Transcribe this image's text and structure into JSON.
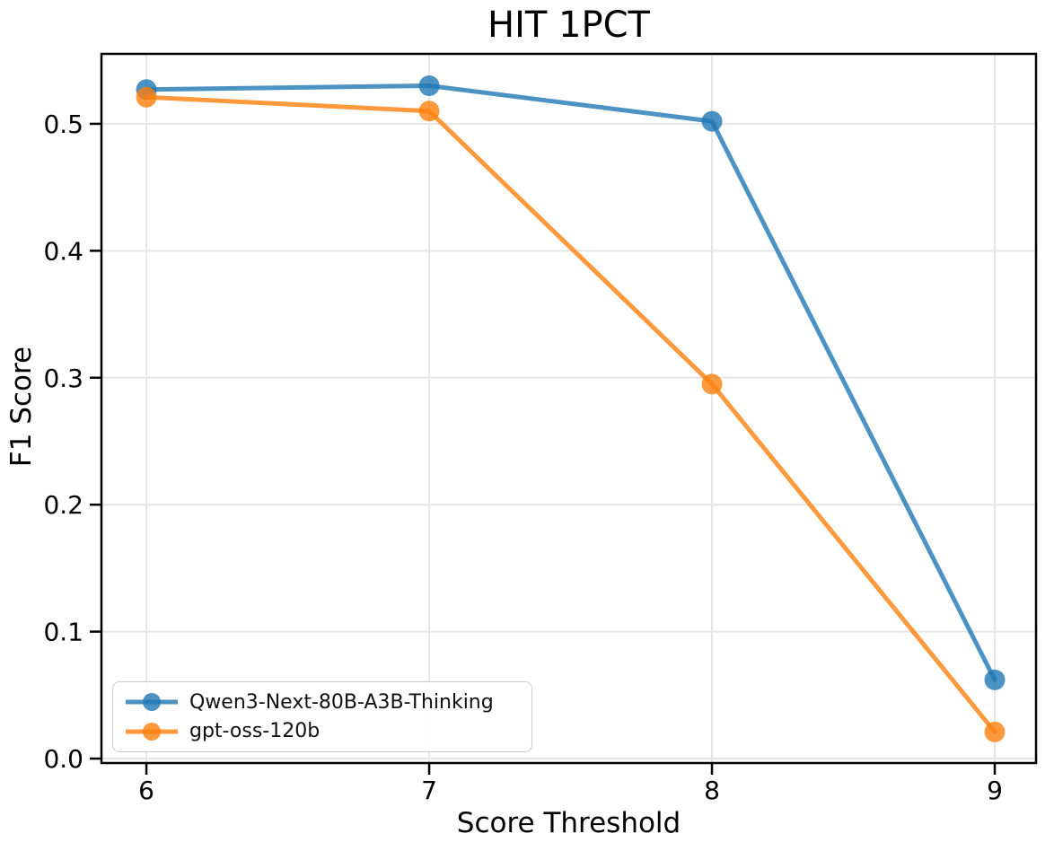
{
  "chart_data": {
    "type": "line",
    "title": "HIT 1PCT",
    "xlabel": "Score Threshold",
    "ylabel": "F1 Score",
    "x": [
      6,
      7,
      8,
      9
    ],
    "series": [
      {
        "name": "Qwen3-Next-80B-A3B-Thinking",
        "color": "#1f77b4",
        "values": [
          0.527,
          0.53,
          0.502,
          0.062
        ]
      },
      {
        "name": "gpt-oss-120b",
        "color": "#ff7f0e",
        "values": [
          0.521,
          0.51,
          0.295,
          0.021
        ]
      }
    ],
    "xlim": [
      5.841,
      9.146
    ],
    "ylim": [
      -0.0035,
      0.5551
    ],
    "xticks": {
      "values": [
        6,
        7,
        8,
        9
      ],
      "labels": [
        "6",
        "7",
        "8",
        "9"
      ]
    },
    "yticks": {
      "values": [
        0.0,
        0.1,
        0.2,
        0.3,
        0.4,
        0.5
      ],
      "labels": [
        "0.0",
        "0.1",
        "0.2",
        "0.3",
        "0.4",
        "0.5"
      ]
    },
    "grid": true,
    "grid_color": "#e6e6e6",
    "spine_color": "#000000",
    "series_opacity": 0.8,
    "legend_position": "lower left"
  }
}
